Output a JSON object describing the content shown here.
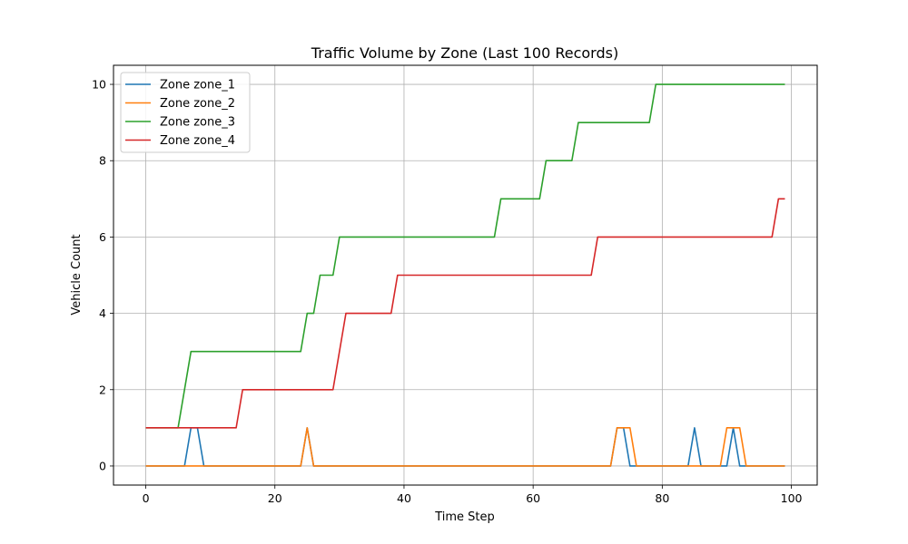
{
  "chart_data": {
    "type": "line",
    "title": "Traffic Volume by Zone (Last 100 Records)",
    "xlabel": "Time Step",
    "ylabel": "Vehicle Count",
    "xlim": [
      -5,
      104
    ],
    "ylim": [
      -0.5,
      10.5
    ],
    "xticks": [
      0,
      20,
      40,
      60,
      80,
      100
    ],
    "yticks": [
      0,
      2,
      4,
      6,
      8,
      10
    ],
    "grid": true,
    "legend_position": "upper-left",
    "series": [
      {
        "name": "Zone zone_1",
        "color": "#1f77b4",
        "points": [
          [
            0,
            0
          ],
          [
            6,
            0
          ],
          [
            7,
            1
          ],
          [
            8,
            1
          ],
          [
            9,
            0
          ],
          [
            24,
            0
          ],
          [
            25,
            1
          ],
          [
            26,
            0
          ],
          [
            72,
            0
          ],
          [
            73,
            1
          ],
          [
            74,
            1
          ],
          [
            75,
            0
          ],
          [
            84,
            0
          ],
          [
            85,
            1
          ],
          [
            86,
            0
          ],
          [
            90,
            0
          ],
          [
            91,
            1
          ],
          [
            92,
            0
          ],
          [
            99,
            0
          ]
        ]
      },
      {
        "name": "Zone zone_2",
        "color": "#ff7f0e",
        "points": [
          [
            0,
            0
          ],
          [
            24,
            0
          ],
          [
            25,
            1
          ],
          [
            26,
            0
          ],
          [
            72,
            0
          ],
          [
            73,
            1
          ],
          [
            75,
            1
          ],
          [
            76,
            0
          ],
          [
            89,
            0
          ],
          [
            90,
            1
          ],
          [
            92,
            1
          ],
          [
            93,
            0
          ],
          [
            99,
            0
          ]
        ]
      },
      {
        "name": "Zone zone_3",
        "color": "#2ca02c",
        "points": [
          [
            0,
            1
          ],
          [
            5,
            1
          ],
          [
            7,
            3
          ],
          [
            24,
            3
          ],
          [
            25,
            4
          ],
          [
            26,
            4
          ],
          [
            27,
            5
          ],
          [
            29,
            5
          ],
          [
            30,
            6
          ],
          [
            54,
            6
          ],
          [
            55,
            7
          ],
          [
            61,
            7
          ],
          [
            62,
            8
          ],
          [
            66,
            8
          ],
          [
            67,
            9
          ],
          [
            78,
            9
          ],
          [
            79,
            10
          ],
          [
            99,
            10
          ]
        ]
      },
      {
        "name": "Zone zone_4",
        "color": "#d62728",
        "points": [
          [
            0,
            1
          ],
          [
            14,
            1
          ],
          [
            15,
            2
          ],
          [
            29,
            2
          ],
          [
            31,
            4
          ],
          [
            38,
            4
          ],
          [
            39,
            5
          ],
          [
            69,
            5
          ],
          [
            70,
            6
          ],
          [
            97,
            6
          ],
          [
            98,
            7
          ],
          [
            99,
            7
          ]
        ]
      }
    ]
  }
}
